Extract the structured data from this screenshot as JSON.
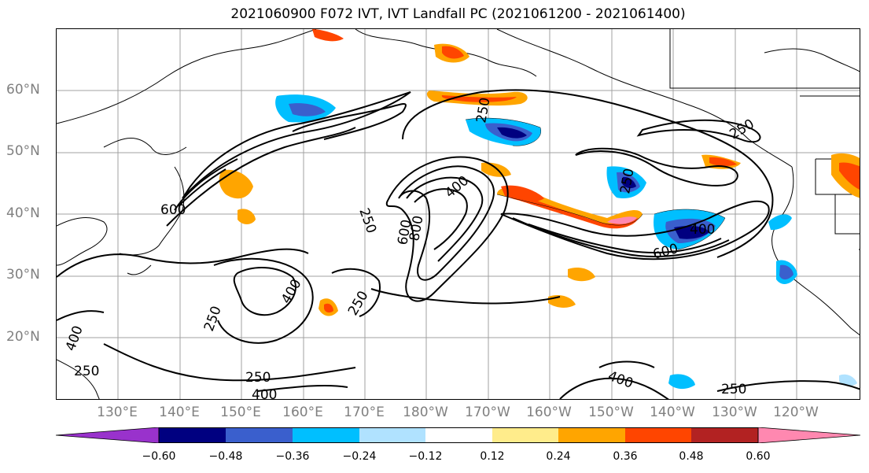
{
  "title": "2021060900 F072 IVT, IVT Landfall PC (2021061200 - 2021061400)",
  "lat_labels": [
    "60°N",
    "50°N",
    "40°N",
    "30°N",
    "20°N"
  ],
  "lon_labels": [
    "130°E",
    "140°E",
    "150°E",
    "160°E",
    "170°E",
    "180°W",
    "170°W",
    "160°W",
    "150°W",
    "140°W",
    "130°W",
    "120°W"
  ],
  "contour_labels": [
    "250",
    "250",
    "250",
    "250",
    "250",
    "250",
    "250",
    "250",
    "250",
    "400",
    "400",
    "400",
    "400",
    "400",
    "400",
    "600",
    "600",
    "600",
    "800",
    "250"
  ],
  "colorbar": {
    "ticks": [
      "−0.60",
      "−0.48",
      "−0.36",
      "−0.24",
      "−0.12",
      "0.12",
      "0.24",
      "0.36",
      "0.48",
      "0.60"
    ],
    "colors": [
      "#9932cc",
      "#000080",
      "#3a5fcd",
      "#00bfff",
      "#b0e2ff",
      "#ffffff",
      "#ffec8b",
      "#ffa500",
      "#ff4500",
      "#b22222",
      "#ff88b0"
    ]
  }
}
